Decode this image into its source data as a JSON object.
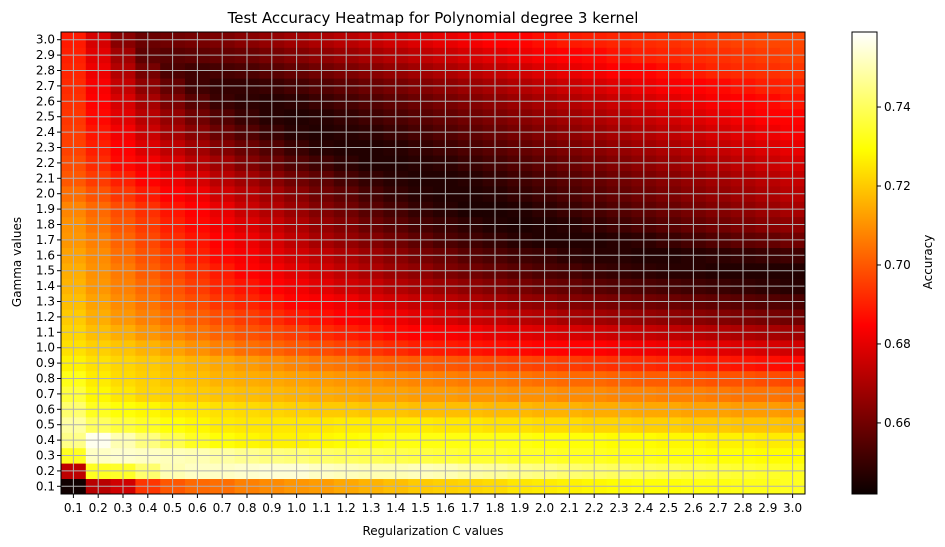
{
  "chart_data": {
    "type": "heatmap",
    "title": "Test Accuracy Heatmap for Polynomial degree 3 kernel",
    "xlabel": "Regularization C values",
    "ylabel": "Gamma values",
    "x": [
      "0.1",
      "0.2",
      "0.3",
      "0.4",
      "0.5",
      "0.6",
      "0.7",
      "0.8",
      "0.9",
      "1.0",
      "1.1",
      "1.2",
      "1.3",
      "1.4",
      "1.5",
      "1.6",
      "1.7",
      "1.8",
      "1.9",
      "2.0",
      "2.1",
      "2.2",
      "2.3",
      "2.4",
      "2.5",
      "2.6",
      "2.7",
      "2.8",
      "2.9",
      "3.0"
    ],
    "y": [
      "0.1",
      "0.2",
      "0.3",
      "0.4",
      "0.5",
      "0.6",
      "0.7",
      "0.8",
      "0.9",
      "1.0",
      "1.1",
      "1.2",
      "1.3",
      "1.4",
      "1.5",
      "1.6",
      "1.7",
      "1.8",
      "1.9",
      "2.0",
      "2.1",
      "2.2",
      "2.3",
      "2.4",
      "2.5",
      "2.6",
      "2.7",
      "2.8",
      "2.9",
      "3.0"
    ],
    "colorbar": {
      "label": "Accuracy",
      "ticks": [
        0.66,
        0.68,
        0.7,
        0.72,
        0.74
      ],
      "vmin": 0.642,
      "vmax": 0.759,
      "colormap": "hot"
    },
    "grid": true,
    "values_note_rows_gamma_low_to_high": "values[i][j] = accuracy at gamma y[i], C x[j]",
    "values": [
      [
        0.643,
        0.671,
        0.675,
        0.694,
        0.7,
        0.703,
        0.704,
        0.707,
        0.709,
        0.711,
        0.712,
        0.714,
        0.716,
        0.718,
        0.72,
        0.721,
        0.722,
        0.723,
        0.725,
        0.726,
        0.727,
        0.728,
        0.729,
        0.73,
        0.73,
        0.731,
        0.731,
        0.732,
        0.732,
        0.733
      ],
      [
        0.672,
        0.733,
        0.734,
        0.742,
        0.75,
        0.752,
        0.752,
        0.753,
        0.754,
        0.754,
        0.752,
        0.751,
        0.75,
        0.75,
        0.751,
        0.75,
        0.748,
        0.747,
        0.745,
        0.744,
        0.742,
        0.741,
        0.74,
        0.739,
        0.738,
        0.737,
        0.736,
        0.735,
        0.734,
        0.733
      ],
      [
        0.733,
        0.752,
        0.753,
        0.752,
        0.751,
        0.75,
        0.748,
        0.746,
        0.744,
        0.743,
        0.741,
        0.74,
        0.739,
        0.738,
        0.737,
        0.736,
        0.735,
        0.735,
        0.734,
        0.734,
        0.733,
        0.733,
        0.732,
        0.732,
        0.731,
        0.731,
        0.73,
        0.73,
        0.729,
        0.729
      ],
      [
        0.745,
        0.757,
        0.75,
        0.744,
        0.738,
        0.733,
        0.73,
        0.728,
        0.727,
        0.727,
        0.728,
        0.729,
        0.73,
        0.731,
        0.731,
        0.731,
        0.731,
        0.731,
        0.731,
        0.73,
        0.73,
        0.73,
        0.729,
        0.729,
        0.728,
        0.728,
        0.727,
        0.727,
        0.726,
        0.726
      ],
      [
        0.748,
        0.74,
        0.736,
        0.733,
        0.73,
        0.728,
        0.726,
        0.725,
        0.725,
        0.725,
        0.725,
        0.726,
        0.726,
        0.726,
        0.726,
        0.725,
        0.725,
        0.724,
        0.724,
        0.723,
        0.723,
        0.722,
        0.722,
        0.721,
        0.721,
        0.72,
        0.72,
        0.719,
        0.719,
        0.718
      ],
      [
        0.742,
        0.733,
        0.73,
        0.728,
        0.726,
        0.725,
        0.724,
        0.723,
        0.722,
        0.721,
        0.72,
        0.72,
        0.719,
        0.719,
        0.718,
        0.718,
        0.718,
        0.717,
        0.717,
        0.716,
        0.716,
        0.715,
        0.715,
        0.714,
        0.714,
        0.713,
        0.713,
        0.712,
        0.712,
        0.711
      ],
      [
        0.736,
        0.728,
        0.725,
        0.722,
        0.721,
        0.72,
        0.719,
        0.718,
        0.717,
        0.716,
        0.715,
        0.714,
        0.713,
        0.713,
        0.712,
        0.712,
        0.711,
        0.711,
        0.71,
        0.71,
        0.709,
        0.709,
        0.708,
        0.708,
        0.707,
        0.707,
        0.706,
        0.705,
        0.705,
        0.704
      ],
      [
        0.732,
        0.726,
        0.723,
        0.721,
        0.719,
        0.718,
        0.716,
        0.715,
        0.714,
        0.713,
        0.712,
        0.711,
        0.71,
        0.709,
        0.708,
        0.707,
        0.706,
        0.706,
        0.705,
        0.704,
        0.703,
        0.703,
        0.702,
        0.701,
        0.701,
        0.7,
        0.699,
        0.699,
        0.698,
        0.697
      ],
      [
        0.727,
        0.724,
        0.722,
        0.72,
        0.718,
        0.716,
        0.714,
        0.712,
        0.71,
        0.708,
        0.706,
        0.705,
        0.703,
        0.702,
        0.701,
        0.7,
        0.699,
        0.698,
        0.697,
        0.696,
        0.695,
        0.694,
        0.693,
        0.692,
        0.691,
        0.69,
        0.689,
        0.688,
        0.687,
        0.686
      ],
      [
        0.724,
        0.721,
        0.719,
        0.716,
        0.713,
        0.71,
        0.707,
        0.704,
        0.702,
        0.7,
        0.698,
        0.696,
        0.694,
        0.692,
        0.69,
        0.689,
        0.688,
        0.687,
        0.686,
        0.685,
        0.684,
        0.683,
        0.682,
        0.681,
        0.68,
        0.679,
        0.678,
        0.677,
        0.676,
        0.675
      ],
      [
        0.722,
        0.718,
        0.715,
        0.711,
        0.708,
        0.705,
        0.702,
        0.699,
        0.697,
        0.695,
        0.692,
        0.69,
        0.688,
        0.686,
        0.684,
        0.682,
        0.681,
        0.679,
        0.678,
        0.677,
        0.676,
        0.675,
        0.674,
        0.673,
        0.672,
        0.671,
        0.67,
        0.669,
        0.668,
        0.667
      ],
      [
        0.72,
        0.715,
        0.711,
        0.707,
        0.704,
        0.701,
        0.698,
        0.695,
        0.692,
        0.689,
        0.687,
        0.684,
        0.682,
        0.68,
        0.678,
        0.676,
        0.674,
        0.673,
        0.671,
        0.67,
        0.668,
        0.667,
        0.666,
        0.665,
        0.664,
        0.663,
        0.662,
        0.661,
        0.66,
        0.659
      ],
      [
        0.718,
        0.713,
        0.709,
        0.705,
        0.701,
        0.698,
        0.694,
        0.691,
        0.688,
        0.685,
        0.682,
        0.68,
        0.677,
        0.675,
        0.673,
        0.671,
        0.669,
        0.667,
        0.665,
        0.664,
        0.662,
        0.661,
        0.66,
        0.659,
        0.658,
        0.657,
        0.656,
        0.655,
        0.654,
        0.653
      ],
      [
        0.716,
        0.711,
        0.707,
        0.703,
        0.699,
        0.695,
        0.691,
        0.688,
        0.684,
        0.681,
        0.678,
        0.675,
        0.673,
        0.67,
        0.668,
        0.666,
        0.664,
        0.662,
        0.66,
        0.658,
        0.657,
        0.655,
        0.654,
        0.653,
        0.652,
        0.651,
        0.65,
        0.649,
        0.648,
        0.647
      ],
      [
        0.715,
        0.71,
        0.706,
        0.701,
        0.697,
        0.693,
        0.689,
        0.685,
        0.681,
        0.678,
        0.675,
        0.672,
        0.669,
        0.666,
        0.664,
        0.661,
        0.659,
        0.657,
        0.655,
        0.653,
        0.652,
        0.65,
        0.649,
        0.648,
        0.647,
        0.647,
        0.646,
        0.646,
        0.646,
        0.646
      ],
      [
        0.713,
        0.709,
        0.704,
        0.699,
        0.695,
        0.69,
        0.686,
        0.682,
        0.678,
        0.675,
        0.672,
        0.669,
        0.666,
        0.663,
        0.66,
        0.658,
        0.655,
        0.653,
        0.651,
        0.65,
        0.648,
        0.647,
        0.647,
        0.646,
        0.646,
        0.647,
        0.648,
        0.649,
        0.65,
        0.651
      ],
      [
        0.711,
        0.707,
        0.702,
        0.697,
        0.692,
        0.688,
        0.684,
        0.68,
        0.676,
        0.672,
        0.668,
        0.665,
        0.662,
        0.659,
        0.656,
        0.653,
        0.651,
        0.649,
        0.647,
        0.646,
        0.646,
        0.646,
        0.647,
        0.648,
        0.65,
        0.652,
        0.654,
        0.656,
        0.657,
        0.659
      ],
      [
        0.71,
        0.705,
        0.7,
        0.695,
        0.69,
        0.686,
        0.681,
        0.677,
        0.673,
        0.669,
        0.665,
        0.662,
        0.658,
        0.655,
        0.652,
        0.65,
        0.648,
        0.646,
        0.645,
        0.646,
        0.647,
        0.649,
        0.651,
        0.653,
        0.655,
        0.657,
        0.659,
        0.661,
        0.663,
        0.664
      ],
      [
        0.708,
        0.703,
        0.698,
        0.693,
        0.688,
        0.683,
        0.679,
        0.674,
        0.67,
        0.666,
        0.662,
        0.659,
        0.655,
        0.652,
        0.649,
        0.647,
        0.645,
        0.645,
        0.646,
        0.648,
        0.65,
        0.652,
        0.654,
        0.656,
        0.658,
        0.66,
        0.662,
        0.664,
        0.666,
        0.668
      ],
      [
        0.704,
        0.699,
        0.694,
        0.689,
        0.684,
        0.68,
        0.675,
        0.671,
        0.667,
        0.663,
        0.659,
        0.656,
        0.652,
        0.649,
        0.647,
        0.646,
        0.646,
        0.647,
        0.649,
        0.651,
        0.653,
        0.655,
        0.657,
        0.659,
        0.661,
        0.663,
        0.665,
        0.667,
        0.669,
        0.671
      ],
      [
        0.7,
        0.695,
        0.69,
        0.685,
        0.68,
        0.676,
        0.671,
        0.667,
        0.663,
        0.659,
        0.656,
        0.652,
        0.649,
        0.647,
        0.646,
        0.646,
        0.647,
        0.649,
        0.651,
        0.653,
        0.655,
        0.657,
        0.659,
        0.661,
        0.663,
        0.665,
        0.667,
        0.669,
        0.671,
        0.673
      ],
      [
        0.698,
        0.692,
        0.686,
        0.681,
        0.676,
        0.671,
        0.667,
        0.662,
        0.658,
        0.654,
        0.651,
        0.648,
        0.646,
        0.646,
        0.647,
        0.648,
        0.65,
        0.652,
        0.654,
        0.656,
        0.658,
        0.66,
        0.662,
        0.664,
        0.666,
        0.668,
        0.67,
        0.672,
        0.674,
        0.676
      ],
      [
        0.696,
        0.69,
        0.683,
        0.677,
        0.672,
        0.667,
        0.662,
        0.658,
        0.654,
        0.65,
        0.647,
        0.646,
        0.646,
        0.647,
        0.649,
        0.651,
        0.653,
        0.655,
        0.657,
        0.659,
        0.661,
        0.663,
        0.665,
        0.667,
        0.669,
        0.671,
        0.673,
        0.675,
        0.677,
        0.679
      ],
      [
        0.695,
        0.688,
        0.681,
        0.674,
        0.668,
        0.663,
        0.658,
        0.654,
        0.65,
        0.647,
        0.646,
        0.647,
        0.648,
        0.65,
        0.652,
        0.654,
        0.656,
        0.658,
        0.66,
        0.662,
        0.664,
        0.666,
        0.668,
        0.67,
        0.672,
        0.674,
        0.676,
        0.678,
        0.68,
        0.682
      ],
      [
        0.694,
        0.686,
        0.678,
        0.671,
        0.665,
        0.659,
        0.654,
        0.65,
        0.647,
        0.646,
        0.647,
        0.649,
        0.651,
        0.653,
        0.655,
        0.657,
        0.659,
        0.661,
        0.663,
        0.665,
        0.667,
        0.669,
        0.671,
        0.673,
        0.675,
        0.677,
        0.679,
        0.681,
        0.683,
        0.685
      ],
      [
        0.693,
        0.684,
        0.676,
        0.668,
        0.661,
        0.655,
        0.65,
        0.648,
        0.647,
        0.648,
        0.65,
        0.652,
        0.654,
        0.656,
        0.658,
        0.66,
        0.662,
        0.664,
        0.666,
        0.668,
        0.67,
        0.672,
        0.674,
        0.676,
        0.678,
        0.68,
        0.682,
        0.684,
        0.686,
        0.688
      ],
      [
        0.692,
        0.682,
        0.673,
        0.664,
        0.657,
        0.651,
        0.649,
        0.649,
        0.65,
        0.652,
        0.654,
        0.656,
        0.658,
        0.66,
        0.662,
        0.664,
        0.666,
        0.668,
        0.67,
        0.672,
        0.674,
        0.676,
        0.678,
        0.68,
        0.682,
        0.684,
        0.686,
        0.688,
        0.69,
        0.691
      ],
      [
        0.691,
        0.68,
        0.67,
        0.66,
        0.653,
        0.651,
        0.652,
        0.653,
        0.655,
        0.657,
        0.659,
        0.661,
        0.663,
        0.665,
        0.667,
        0.669,
        0.671,
        0.673,
        0.675,
        0.677,
        0.679,
        0.681,
        0.683,
        0.685,
        0.687,
        0.689,
        0.691,
        0.692,
        0.693,
        0.694
      ],
      [
        0.69,
        0.678,
        0.667,
        0.656,
        0.655,
        0.656,
        0.657,
        0.658,
        0.66,
        0.662,
        0.664,
        0.666,
        0.668,
        0.67,
        0.672,
        0.674,
        0.676,
        0.678,
        0.68,
        0.682,
        0.684,
        0.686,
        0.688,
        0.69,
        0.691,
        0.692,
        0.693,
        0.694,
        0.695,
        0.696
      ],
      [
        0.689,
        0.676,
        0.663,
        0.658,
        0.659,
        0.66,
        0.661,
        0.663,
        0.665,
        0.667,
        0.669,
        0.671,
        0.673,
        0.675,
        0.677,
        0.679,
        0.681,
        0.683,
        0.685,
        0.687,
        0.689,
        0.69,
        0.691,
        0.692,
        0.693,
        0.694,
        0.695,
        0.696,
        0.697,
        0.697
      ]
    ]
  }
}
